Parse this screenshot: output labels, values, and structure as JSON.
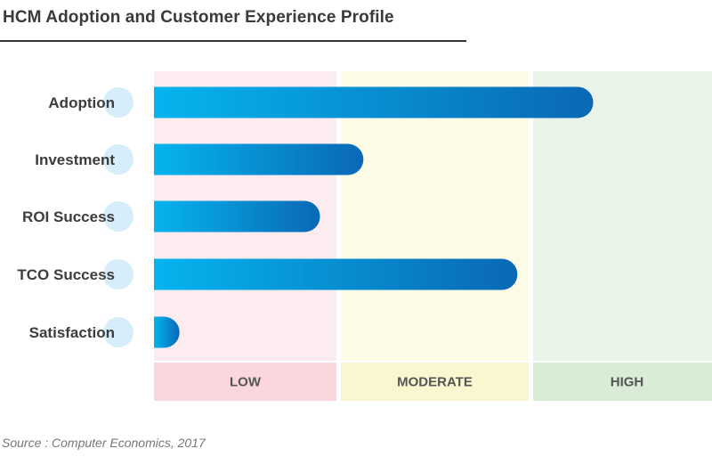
{
  "header": {
    "title": "HCM Adoption and Customer Experience Profile"
  },
  "footer": {
    "source": "Source : Computer Economics, 2017"
  },
  "colors": {
    "bar_light": "#05b4ee",
    "bar_dark": "#0a68b5",
    "bubble": "#d6eef9",
    "low_band": "#fdecef",
    "low_band_label": "#fad7dc",
    "moderate_band": "#fcfbe6",
    "moderate_band_label": "#f9f7cf",
    "high_band": "#e9f3e7",
    "high_band_label": "#d9ecd6"
  },
  "chart_data": {
    "type": "bar",
    "orientation": "horizontal",
    "categories": [
      "Adoption",
      "Investment",
      "ROI Success",
      "TCO Success",
      "Satisfaction"
    ],
    "values": [
      2.32,
      1.12,
      0.91,
      1.94,
      0.14
    ],
    "bands": [
      "LOW",
      "MODERATE",
      "HIGH"
    ],
    "xlim": [
      0,
      3
    ],
    "xlabel": "",
    "ylabel": "",
    "legend": "none",
    "grid": false
  }
}
